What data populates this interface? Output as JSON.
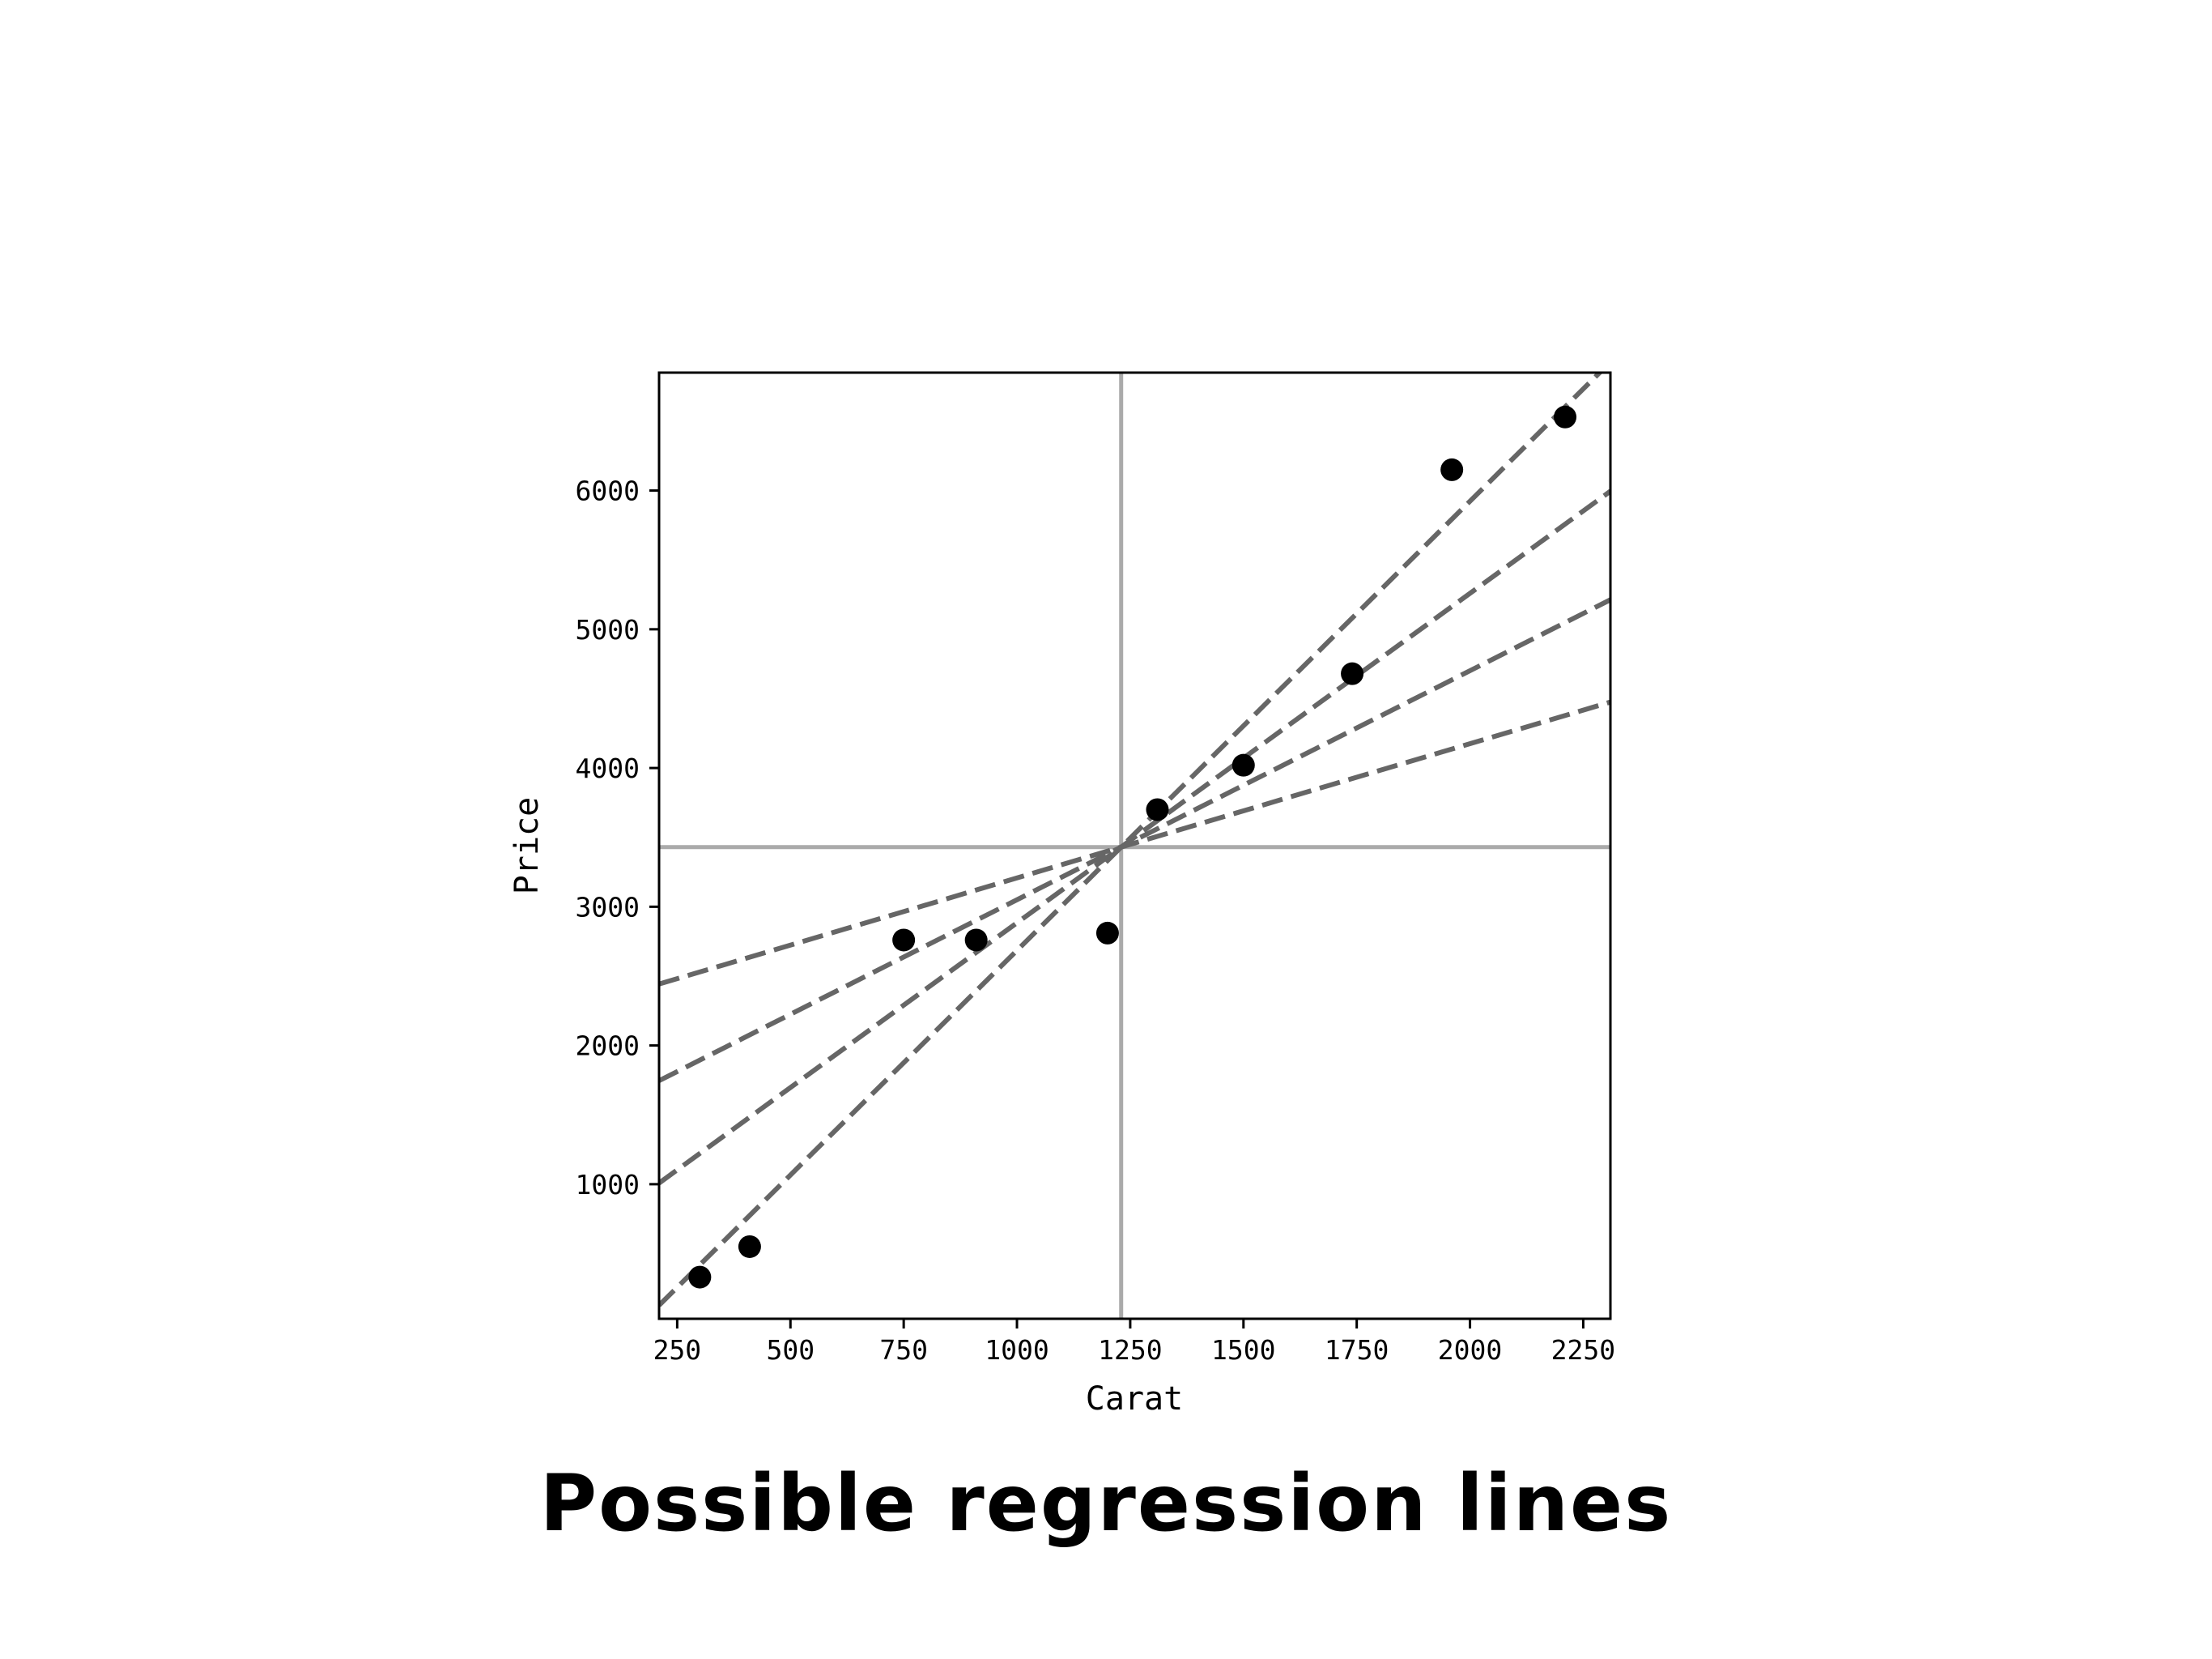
{
  "chart_data": {
    "type": "scatter",
    "title": "",
    "caption": "Possible regression lines",
    "xlabel": "Carat",
    "ylabel": "Price",
    "xlim": [
      210,
      2310
    ],
    "ylim": [
      30,
      6850
    ],
    "xticks": [
      250,
      500,
      750,
      1000,
      1250,
      1500,
      1750,
      2000,
      2250
    ],
    "yticks": [
      1000,
      2000,
      3000,
      4000,
      5000,
      6000
    ],
    "grid": false,
    "points": [
      {
        "x": 300,
        "y": 330
      },
      {
        "x": 410,
        "y": 550
      },
      {
        "x": 750,
        "y": 2760
      },
      {
        "x": 910,
        "y": 2760
      },
      {
        "x": 1200,
        "y": 2810
      },
      {
        "x": 1310,
        "y": 3700
      },
      {
        "x": 1500,
        "y": 4020
      },
      {
        "x": 1740,
        "y": 4680
      },
      {
        "x": 1960,
        "y": 6150
      },
      {
        "x": 2210,
        "y": 6530
      }
    ],
    "reference_lines": {
      "mean_x": 1230,
      "mean_y": 3430,
      "color": "#aaaaaa"
    },
    "regression_lines": [
      {
        "slope": 0.968,
        "intercept": 2239.4
      },
      {
        "slope": 1.651,
        "intercept": 1399.3
      },
      {
        "slope": 2.375,
        "intercept": 509.2
      },
      {
        "slope": 3.238,
        "intercept": -552.9
      }
    ],
    "colors": {
      "points": "#000000",
      "regression": "#666666",
      "reference": "#aaaaaa",
      "frame": "#000000"
    }
  }
}
